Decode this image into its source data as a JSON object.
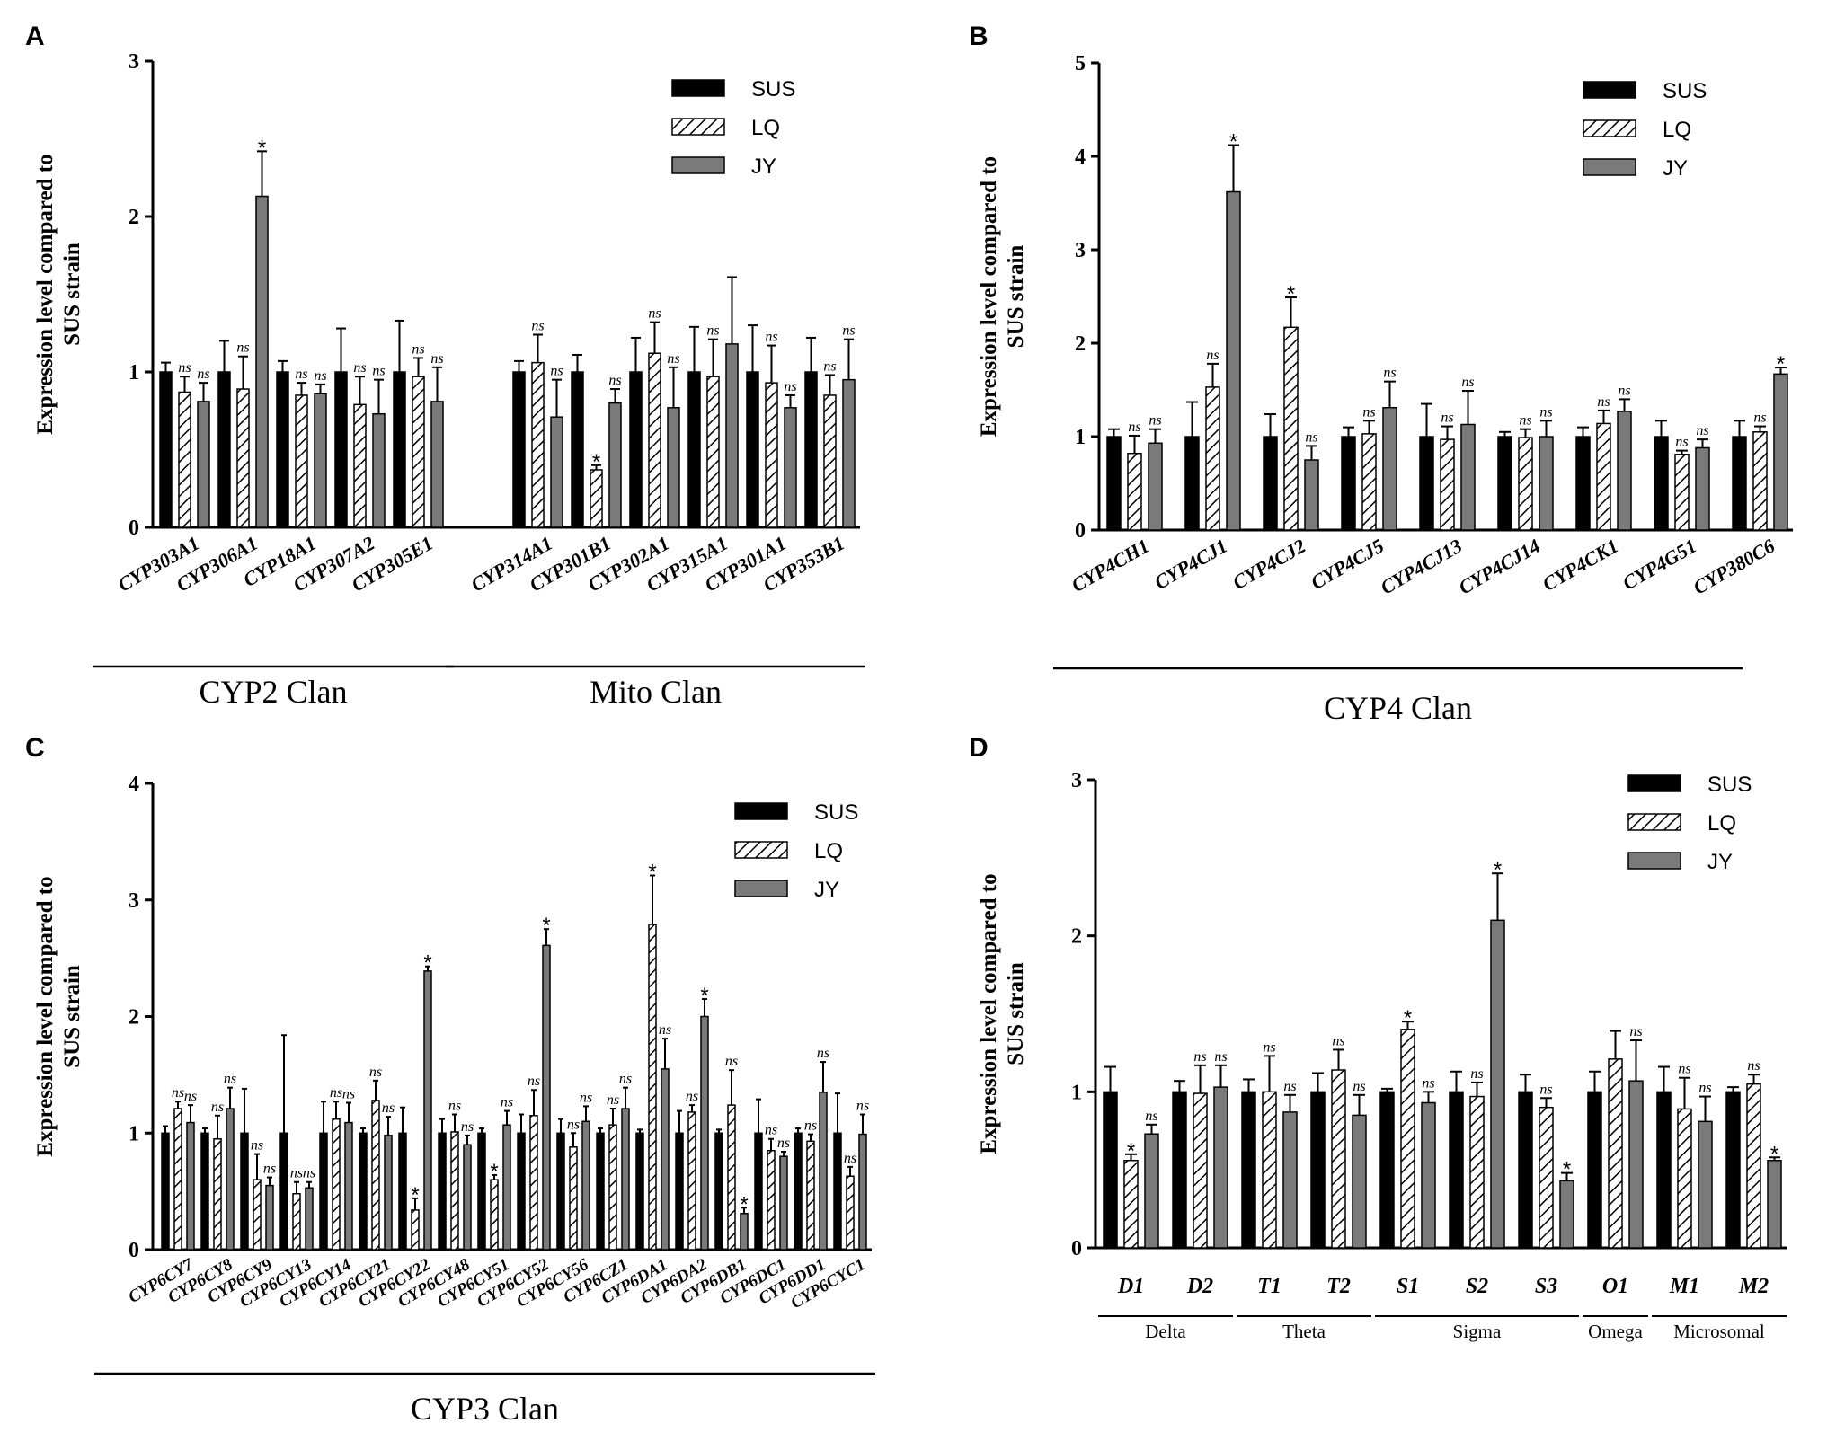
{
  "legend_labels": [
    "SUS",
    "LQ",
    "JY"
  ],
  "colors": {
    "SUS": "#000000",
    "LQ": "#ffffff",
    "JY": "#7a7a7a",
    "axis": "#000000"
  },
  "chart_data": [
    {
      "panel": "A",
      "type": "bar",
      "ylabel": "Expression level compared to SUS strain",
      "ylim": [
        0,
        3
      ],
      "yticks": [
        0,
        1,
        2,
        3
      ],
      "categories": [
        "CYP303A1",
        "CYP306A1",
        "CYP18A1",
        "CYP307A2",
        "CYP305E1",
        "CYP314A1",
        "CYP301B1",
        "CYP302A1",
        "CYP315A1",
        "CYP301A1",
        "CYP353B1"
      ],
      "series": [
        {
          "name": "SUS",
          "values": [
            1,
            1,
            1,
            1,
            1,
            1,
            1,
            1,
            1,
            1,
            1
          ],
          "errors": [
            0.06,
            0.2,
            0.07,
            0.28,
            0.33,
            0.07,
            0.11,
            0.22,
            0.29,
            0.3,
            0.22
          ]
        },
        {
          "name": "LQ",
          "values": [
            0.87,
            0.89,
            0.85,
            0.79,
            0.97,
            1.06,
            0.37,
            1.12,
            0.97,
            0.93,
            0.85
          ],
          "errors": [
            0.1,
            0.21,
            0.08,
            0.18,
            0.12,
            0.18,
            0.03,
            0.2,
            0.24,
            0.24,
            0.13
          ]
        },
        {
          "name": "JY",
          "values": [
            0.81,
            2.13,
            0.86,
            0.73,
            0.81,
            0.71,
            0.8,
            0.77,
            1.18,
            0.77,
            0.95
          ],
          "errors": [
            0.12,
            0.29,
            0.06,
            0.22,
            0.22,
            0.24,
            0.09,
            0.26,
            0.43,
            0.08,
            0.26
          ]
        }
      ],
      "annotations": {
        "LQ": [
          "ns",
          "ns",
          "ns",
          "ns",
          "ns",
          "ns",
          "*",
          "ns",
          "ns",
          "ns",
          "ns"
        ],
        "JY": [
          "ns",
          "*",
          "ns",
          "ns",
          "ns",
          "ns",
          "ns",
          "ns",
          "",
          "ns",
          "ns"
        ]
      },
      "groups": [
        {
          "label": "CYP2 Clan",
          "from": 0,
          "to": 4
        },
        {
          "label": "Mito Clan",
          "from": 5,
          "to": 10
        }
      ],
      "group_gap_after": 4
    },
    {
      "panel": "B",
      "type": "bar",
      "ylabel": "Expression level compared to SUS strain",
      "ylim": [
        0,
        5
      ],
      "yticks": [
        0,
        1,
        2,
        3,
        4,
        5
      ],
      "categories": [
        "CYP4CH1",
        "CYP4CJ1",
        "CYP4CJ2",
        "CYP4CJ5",
        "CYP4CJ13",
        "CYP4CJ14",
        "CYP4CK1",
        "CYP4G51",
        "CYP380C6"
      ],
      "series": [
        {
          "name": "SUS",
          "values": [
            1,
            1,
            1,
            1,
            1,
            1,
            1,
            1,
            1
          ],
          "errors": [
            0.08,
            0.37,
            0.24,
            0.1,
            0.35,
            0.05,
            0.1,
            0.17,
            0.17
          ]
        },
        {
          "name": "LQ",
          "values": [
            0.82,
            1.53,
            2.17,
            1.03,
            0.97,
            0.99,
            1.14,
            0.81,
            1.05
          ],
          "errors": [
            0.19,
            0.25,
            0.32,
            0.14,
            0.14,
            0.09,
            0.14,
            0.04,
            0.06
          ]
        },
        {
          "name": "JY",
          "values": [
            0.93,
            3.62,
            0.75,
            1.31,
            1.13,
            1.0,
            1.27,
            0.88,
            1.67
          ],
          "errors": [
            0.15,
            0.5,
            0.15,
            0.28,
            0.36,
            0.17,
            0.13,
            0.09,
            0.07
          ]
        }
      ],
      "annotations": {
        "LQ": [
          "ns",
          "ns",
          "*",
          "ns",
          "ns",
          "ns",
          "ns",
          "ns",
          "ns"
        ],
        "JY": [
          "ns",
          "*",
          "ns",
          "ns",
          "ns",
          "ns",
          "ns",
          "ns",
          "*"
        ]
      },
      "groups": [
        {
          "label": "CYP4 Clan",
          "from": 0,
          "to": 8
        }
      ]
    },
    {
      "panel": "C",
      "type": "bar",
      "ylabel": "Expression level compared to SUS strain",
      "ylim": [
        0,
        4
      ],
      "yticks": [
        0,
        1,
        2,
        3,
        4
      ],
      "categories": [
        "CYP6CY7",
        "CYP6CY8",
        "CYP6CY9",
        "CYP6CY13",
        "CYP6CY14",
        "CYP6CY21",
        "CYP6CY22",
        "CYP6CY48",
        "CYP6CY51",
        "CYP6CY52",
        "CYP6CY56",
        "CYP6CZ1",
        "CYP6DA1",
        "CYP6DA2",
        "CYP6DB1",
        "CYP6DC1",
        "CYP6DD1",
        "CYP6CYC1"
      ],
      "series": [
        {
          "name": "SUS",
          "values": [
            1,
            1,
            1,
            1,
            1,
            1,
            1,
            1,
            1,
            1,
            1,
            1,
            1,
            1,
            1,
            1,
            1,
            1
          ],
          "errors": [
            0.06,
            0.04,
            0.38,
            0.84,
            0.27,
            0.04,
            0.22,
            0.12,
            0.04,
            0.16,
            0.12,
            0.04,
            0.03,
            0.19,
            0.03,
            0.29,
            0.04,
            0.34
          ]
        },
        {
          "name": "LQ",
          "values": [
            1.21,
            0.95,
            0.6,
            0.48,
            1.12,
            1.28,
            0.34,
            1.01,
            0.6,
            1.15,
            0.88,
            1.07,
            2.79,
            1.18,
            1.24,
            0.85,
            0.93,
            0.63
          ],
          "errors": [
            0.06,
            0.2,
            0.22,
            0.1,
            0.15,
            0.17,
            0.1,
            0.15,
            0.04,
            0.22,
            0.12,
            0.14,
            0.42,
            0.06,
            0.3,
            0.1,
            0.06,
            0.08
          ]
        },
        {
          "name": "JY",
          "values": [
            1.09,
            1.21,
            0.55,
            0.53,
            1.09,
            0.98,
            2.39,
            0.9,
            1.07,
            2.61,
            1.1,
            1.21,
            1.55,
            2.0,
            0.31,
            0.8,
            1.35,
            0.99
          ],
          "errors": [
            0.15,
            0.18,
            0.07,
            0.05,
            0.17,
            0.16,
            0.04,
            0.08,
            0.12,
            0.14,
            0.13,
            0.18,
            0.26,
            0.15,
            0.05,
            0.04,
            0.26,
            0.17
          ]
        }
      ],
      "annotations": {
        "LQ": [
          "ns",
          "ns",
          "ns",
          "ns",
          "ns",
          "ns",
          "*",
          "ns",
          "*",
          "ns",
          "ns",
          "ns",
          "*",
          "ns",
          "ns",
          "ns",
          "ns",
          "ns"
        ],
        "JY": [
          "ns",
          "ns",
          "ns",
          "ns",
          "ns",
          "ns",
          "*",
          "ns",
          "ns",
          "*",
          "ns",
          "ns",
          "ns",
          "*",
          "*",
          "ns",
          "ns",
          "ns"
        ]
      },
      "groups": [
        {
          "label": "CYP3 Clan",
          "from": 0,
          "to": 17
        }
      ]
    },
    {
      "panel": "D",
      "type": "bar",
      "ylabel": "Expression level compared to SUS strain",
      "ylim": [
        0,
        3
      ],
      "yticks": [
        0,
        1,
        2,
        3
      ],
      "categories": [
        "D1",
        "D2",
        "T1",
        "T2",
        "S1",
        "S2",
        "S3",
        "O1",
        "M1",
        "M2"
      ],
      "series": [
        {
          "name": "SUS",
          "values": [
            1,
            1,
            1,
            1,
            1,
            1,
            1,
            1,
            1,
            1
          ],
          "errors": [
            0.16,
            0.07,
            0.08,
            0.12,
            0.02,
            0.13,
            0.11,
            0.13,
            0.16,
            0.03
          ]
        },
        {
          "name": "LQ",
          "values": [
            0.56,
            0.99,
            1.0,
            1.14,
            1.4,
            0.97,
            0.9,
            1.21,
            0.89,
            1.05
          ],
          "errors": [
            0.04,
            0.18,
            0.23,
            0.13,
            0.05,
            0.09,
            0.06,
            0.18,
            0.2,
            0.06
          ]
        },
        {
          "name": "JY",
          "values": [
            0.73,
            1.03,
            0.87,
            0.85,
            0.93,
            2.1,
            0.43,
            1.07,
            0.81,
            0.56
          ],
          "errors": [
            0.06,
            0.14,
            0.11,
            0.13,
            0.07,
            0.3,
            0.05,
            0.26,
            0.16,
            0.02
          ]
        }
      ],
      "annotations": {
        "LQ": [
          "*",
          "ns",
          "ns",
          "ns",
          "*",
          "ns",
          "ns",
          "",
          "ns",
          "ns"
        ],
        "JY": [
          "ns",
          "ns",
          "ns",
          "ns",
          "ns",
          "*",
          "*",
          "ns",
          "ns",
          "*"
        ]
      },
      "subgroups": [
        {
          "label": "Delta",
          "from": 0,
          "to": 1
        },
        {
          "label": "Theta",
          "from": 2,
          "to": 3
        },
        {
          "label": "Sigma",
          "from": 4,
          "to": 6
        },
        {
          "label": "Omega",
          "from": 7,
          "to": 7
        },
        {
          "label": "Microsomal",
          "from": 8,
          "to": 9
        }
      ]
    }
  ]
}
